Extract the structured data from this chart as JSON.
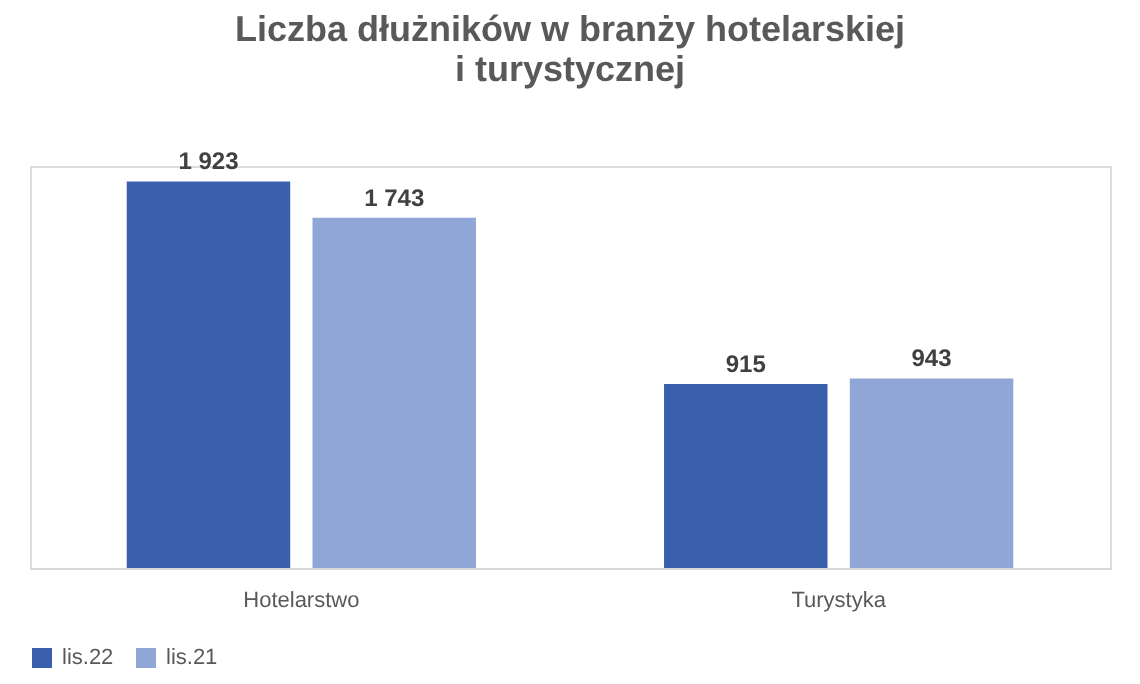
{
  "chart_data": {
    "type": "bar",
    "title": "Liczba dłużników w branży hotelarskiej\ni turystycznej",
    "categories": [
      "Hotelarstwo",
      "Turystyka"
    ],
    "series": [
      {
        "name": "lis.22",
        "color": "#3a5fad",
        "values": [
          1923,
          915
        ],
        "value_labels": [
          "1 923",
          "915"
        ]
      },
      {
        "name": "lis.21",
        "color": "#8fa6d6",
        "values": [
          1743,
          943
        ],
        "value_labels": [
          "1 743",
          "943"
        ]
      }
    ],
    "legend": "bottom",
    "grid": false
  }
}
